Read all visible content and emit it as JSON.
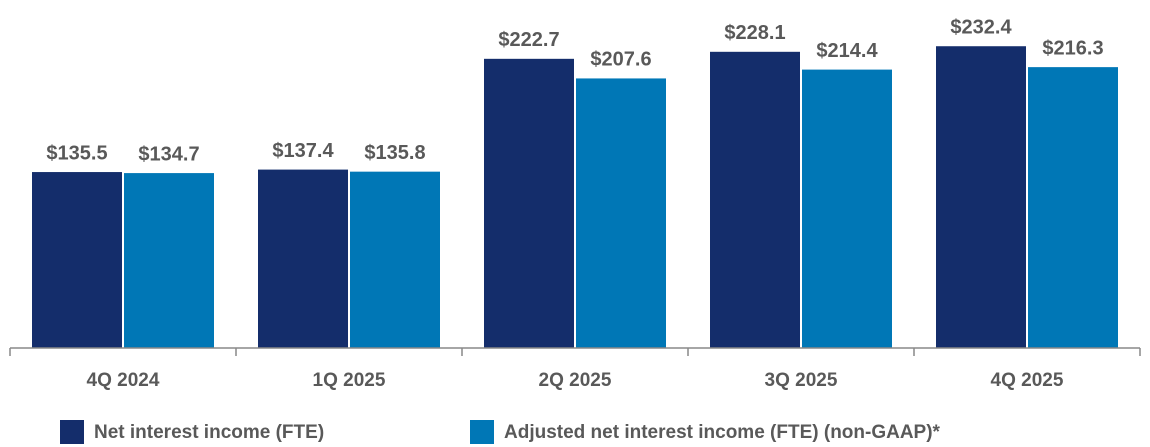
{
  "chart_data": {
    "type": "bar",
    "categories": [
      "4Q 2024",
      "1Q 2025",
      "2Q 2025",
      "3Q 2025",
      "4Q 2025"
    ],
    "series": [
      {
        "name": "Net interest income (FTE)",
        "color": "#142d6b",
        "values": [
          135.5,
          137.4,
          222.7,
          228.1,
          232.4
        ],
        "value_labels": [
          "$135.5",
          "$137.4",
          "$222.7",
          "$228.1",
          "$232.4"
        ]
      },
      {
        "name": "Adjusted net interest income (FTE) (non-GAAP)*",
        "color": "#0077b6",
        "values": [
          134.7,
          135.8,
          207.6,
          214.4,
          216.3
        ],
        "value_labels": [
          "$134.7",
          "$135.8",
          "$207.6",
          "$214.4",
          "$216.3"
        ]
      }
    ],
    "ylim": [
      0,
      268
    ]
  }
}
